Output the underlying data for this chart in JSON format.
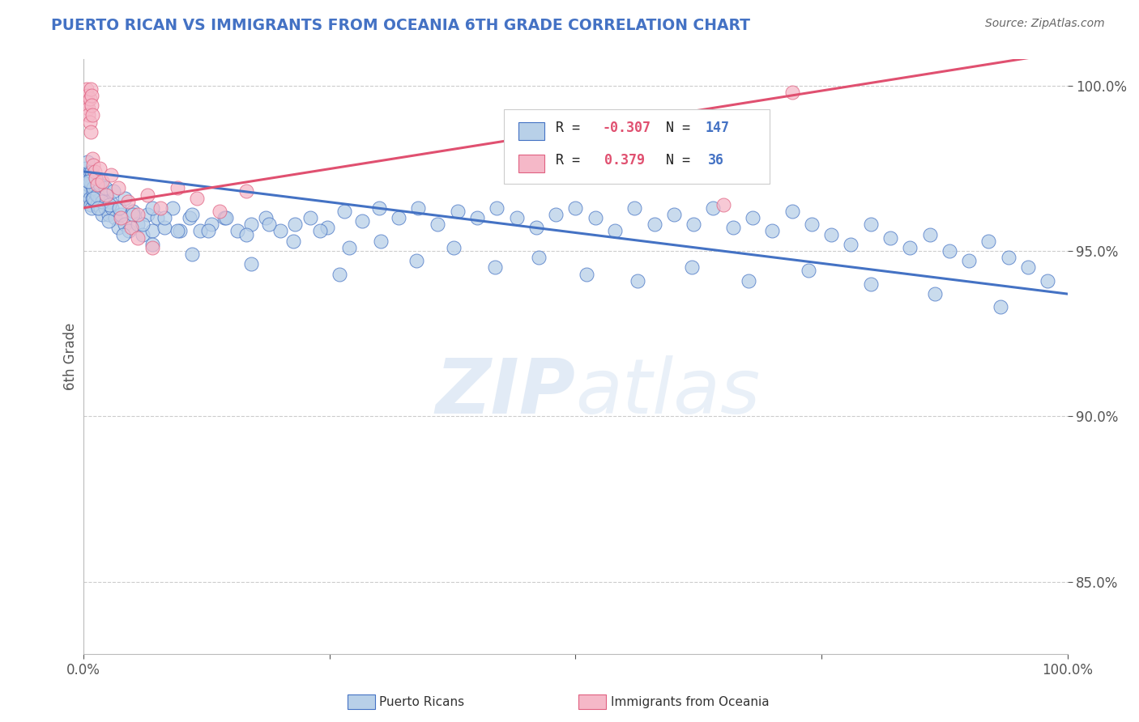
{
  "title": "PUERTO RICAN VS IMMIGRANTS FROM OCEANIA 6TH GRADE CORRELATION CHART",
  "source": "Source: ZipAtlas.com",
  "ylabel": "6th Grade",
  "xlim": [
    0.0,
    1.0
  ],
  "ylim": [
    0.828,
    1.008
  ],
  "yticks": [
    0.85,
    0.9,
    0.95,
    1.0
  ],
  "ytick_labels": [
    "85.0%",
    "90.0%",
    "95.0%",
    "100.0%"
  ],
  "blue_color": "#b8d0e8",
  "pink_color": "#f5b8c8",
  "blue_edge_color": "#4472c4",
  "pink_edge_color": "#e06080",
  "blue_line_color": "#4472c4",
  "pink_line_color": "#e05070",
  "title_color": "#4472c4",
  "watermark": "ZIPatlas",
  "blue_trend": [
    0.0,
    0.974,
    1.0,
    0.937
  ],
  "pink_trend": [
    0.0,
    0.963,
    0.72,
    0.997
  ],
  "blue_points_x": [
    0.002,
    0.003,
    0.004,
    0.004,
    0.005,
    0.005,
    0.006,
    0.006,
    0.007,
    0.007,
    0.008,
    0.008,
    0.009,
    0.009,
    0.01,
    0.01,
    0.011,
    0.012,
    0.012,
    0.013,
    0.014,
    0.015,
    0.016,
    0.017,
    0.018,
    0.019,
    0.02,
    0.022,
    0.023,
    0.025,
    0.027,
    0.029,
    0.032,
    0.035,
    0.038,
    0.042,
    0.046,
    0.05,
    0.055,
    0.06,
    0.065,
    0.07,
    0.075,
    0.082,
    0.09,
    0.098,
    0.108,
    0.118,
    0.13,
    0.143,
    0.156,
    0.17,
    0.185,
    0.2,
    0.215,
    0.23,
    0.248,
    0.265,
    0.283,
    0.3,
    0.32,
    0.34,
    0.36,
    0.38,
    0.4,
    0.42,
    0.44,
    0.46,
    0.48,
    0.5,
    0.52,
    0.54,
    0.56,
    0.58,
    0.6,
    0.62,
    0.64,
    0.66,
    0.68,
    0.7,
    0.72,
    0.74,
    0.76,
    0.78,
    0.8,
    0.82,
    0.84,
    0.86,
    0.88,
    0.9,
    0.92,
    0.94,
    0.96,
    0.98,
    0.004,
    0.006,
    0.008,
    0.01,
    0.012,
    0.014,
    0.016,
    0.019,
    0.022,
    0.026,
    0.03,
    0.036,
    0.042,
    0.05,
    0.06,
    0.07,
    0.082,
    0.095,
    0.11,
    0.127,
    0.145,
    0.165,
    0.188,
    0.213,
    0.24,
    0.27,
    0.302,
    0.338,
    0.376,
    0.418,
    0.463,
    0.511,
    0.563,
    0.618,
    0.676,
    0.737,
    0.8,
    0.865,
    0.932,
    0.005,
    0.01,
    0.015,
    0.025,
    0.04,
    0.07,
    0.11,
    0.17,
    0.26
  ],
  "blue_points_y": [
    0.975,
    0.971,
    0.973,
    0.969,
    0.97,
    0.968,
    0.974,
    0.966,
    0.972,
    0.964,
    0.97,
    0.963,
    0.972,
    0.966,
    0.968,
    0.973,
    0.965,
    0.969,
    0.972,
    0.967,
    0.964,
    0.968,
    0.966,
    0.963,
    0.967,
    0.961,
    0.965,
    0.963,
    0.967,
    0.961,
    0.965,
    0.963,
    0.96,
    0.957,
    0.961,
    0.958,
    0.956,
    0.962,
    0.958,
    0.955,
    0.961,
    0.956,
    0.96,
    0.957,
    0.963,
    0.956,
    0.96,
    0.956,
    0.958,
    0.96,
    0.956,
    0.958,
    0.96,
    0.956,
    0.958,
    0.96,
    0.957,
    0.962,
    0.959,
    0.963,
    0.96,
    0.963,
    0.958,
    0.962,
    0.96,
    0.963,
    0.96,
    0.957,
    0.961,
    0.963,
    0.96,
    0.956,
    0.963,
    0.958,
    0.961,
    0.958,
    0.963,
    0.957,
    0.96,
    0.956,
    0.962,
    0.958,
    0.955,
    0.952,
    0.958,
    0.954,
    0.951,
    0.955,
    0.95,
    0.947,
    0.953,
    0.948,
    0.945,
    0.941,
    0.977,
    0.971,
    0.974,
    0.969,
    0.972,
    0.967,
    0.97,
    0.965,
    0.969,
    0.964,
    0.968,
    0.963,
    0.966,
    0.961,
    0.958,
    0.963,
    0.96,
    0.956,
    0.961,
    0.956,
    0.96,
    0.955,
    0.958,
    0.953,
    0.956,
    0.951,
    0.953,
    0.947,
    0.951,
    0.945,
    0.948,
    0.943,
    0.941,
    0.945,
    0.941,
    0.944,
    0.94,
    0.937,
    0.933,
    0.971,
    0.966,
    0.963,
    0.959,
    0.955,
    0.952,
    0.949,
    0.946,
    0.943
  ],
  "pink_points_x": [
    0.003,
    0.004,
    0.004,
    0.005,
    0.005,
    0.006,
    0.006,
    0.007,
    0.007,
    0.008,
    0.008,
    0.009,
    0.009,
    0.01,
    0.011,
    0.012,
    0.014,
    0.016,
    0.019,
    0.023,
    0.028,
    0.035,
    0.045,
    0.055,
    0.065,
    0.078,
    0.095,
    0.115,
    0.138,
    0.165,
    0.038,
    0.048,
    0.055,
    0.07,
    0.65,
    0.72
  ],
  "pink_points_y": [
    0.999,
    0.997,
    0.995,
    0.993,
    0.991,
    0.996,
    0.989,
    0.999,
    0.986,
    0.997,
    0.994,
    0.991,
    0.978,
    0.976,
    0.974,
    0.972,
    0.97,
    0.975,
    0.971,
    0.967,
    0.973,
    0.969,
    0.965,
    0.961,
    0.967,
    0.963,
    0.969,
    0.966,
    0.962,
    0.968,
    0.96,
    0.957,
    0.954,
    0.951,
    0.964,
    0.998
  ]
}
